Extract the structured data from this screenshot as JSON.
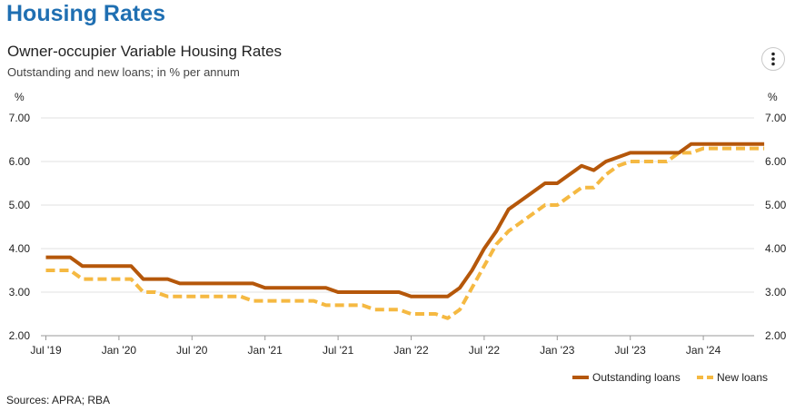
{
  "page": {
    "heading": "Housing Rates"
  },
  "chart": {
    "title": "Owner-occupier Variable Housing Rates",
    "subtitle": "Outstanding and new loans; in % per annum"
  },
  "menu": {
    "icon": "more-vertical-icon"
  },
  "source": "Sources: APRA; RBA",
  "colors": {
    "heading": "#1f6fb2",
    "outstanding": "#b5570a",
    "new": "#f5b942",
    "grid": "#e2e2e2"
  },
  "chart_data": {
    "type": "line",
    "title": "Owner-occupier Variable Housing Rates",
    "subtitle": "Outstanding and new loans; in % per annum",
    "unit_left": "%",
    "unit_right": "%",
    "ylim": [
      2.0,
      7.0
    ],
    "yticks": [
      "2.00",
      "3.00",
      "4.00",
      "5.00",
      "6.00",
      "7.00"
    ],
    "xticks": [
      "Jul '19",
      "Jan '20",
      "Jul '20",
      "Jan '21",
      "Jul '21",
      "Jan '22",
      "Jul '22",
      "Jan '23",
      "Jul '23",
      "Jan '24"
    ],
    "grid": true,
    "legend_position": "bottom-right",
    "series": [
      {
        "name": "Outstanding loans",
        "style": "solid",
        "x": [
          "2019-07",
          "2019-08",
          "2019-09",
          "2019-10",
          "2019-11",
          "2019-12",
          "2020-01",
          "2020-02",
          "2020-03",
          "2020-04",
          "2020-05",
          "2020-06",
          "2020-07",
          "2020-08",
          "2020-09",
          "2020-10",
          "2020-11",
          "2020-12",
          "2021-01",
          "2021-02",
          "2021-03",
          "2021-04",
          "2021-05",
          "2021-06",
          "2021-07",
          "2021-08",
          "2021-09",
          "2021-10",
          "2021-11",
          "2021-12",
          "2022-01",
          "2022-02",
          "2022-03",
          "2022-04",
          "2022-05",
          "2022-06",
          "2022-07",
          "2022-08",
          "2022-09",
          "2022-10",
          "2022-11",
          "2022-12",
          "2023-01",
          "2023-02",
          "2023-03",
          "2023-04",
          "2023-05",
          "2023-06",
          "2023-07",
          "2023-08",
          "2023-09",
          "2023-10",
          "2023-11",
          "2023-12",
          "2024-01",
          "2024-02",
          "2024-03",
          "2024-04",
          "2024-05",
          "2024-06"
        ],
        "values": [
          3.8,
          3.8,
          3.8,
          3.6,
          3.6,
          3.6,
          3.6,
          3.6,
          3.3,
          3.3,
          3.3,
          3.2,
          3.2,
          3.2,
          3.2,
          3.2,
          3.2,
          3.2,
          3.1,
          3.1,
          3.1,
          3.1,
          3.1,
          3.1,
          3.0,
          3.0,
          3.0,
          3.0,
          3.0,
          3.0,
          2.9,
          2.9,
          2.9,
          2.9,
          3.1,
          3.5,
          4.0,
          4.4,
          4.9,
          5.1,
          5.3,
          5.5,
          5.5,
          5.7,
          5.9,
          5.8,
          6.0,
          6.1,
          6.2,
          6.2,
          6.2,
          6.2,
          6.2,
          6.4,
          6.4,
          6.4,
          6.4,
          6.4,
          6.4,
          6.4
        ]
      },
      {
        "name": "New loans",
        "style": "dashed",
        "x": [
          "2019-07",
          "2019-08",
          "2019-09",
          "2019-10",
          "2019-11",
          "2019-12",
          "2020-01",
          "2020-02",
          "2020-03",
          "2020-04",
          "2020-05",
          "2020-06",
          "2020-07",
          "2020-08",
          "2020-09",
          "2020-10",
          "2020-11",
          "2020-12",
          "2021-01",
          "2021-02",
          "2021-03",
          "2021-04",
          "2021-05",
          "2021-06",
          "2021-07",
          "2021-08",
          "2021-09",
          "2021-10",
          "2021-11",
          "2021-12",
          "2022-01",
          "2022-02",
          "2022-03",
          "2022-04",
          "2022-05",
          "2022-06",
          "2022-07",
          "2022-08",
          "2022-09",
          "2022-10",
          "2022-11",
          "2022-12",
          "2023-01",
          "2023-02",
          "2023-03",
          "2023-04",
          "2023-05",
          "2023-06",
          "2023-07",
          "2023-08",
          "2023-09",
          "2023-10",
          "2023-11",
          "2023-12",
          "2024-01",
          "2024-02",
          "2024-03",
          "2024-04",
          "2024-05",
          "2024-06"
        ],
        "values": [
          3.5,
          3.5,
          3.5,
          3.3,
          3.3,
          3.3,
          3.3,
          3.3,
          3.0,
          3.0,
          2.9,
          2.9,
          2.9,
          2.9,
          2.9,
          2.9,
          2.9,
          2.8,
          2.8,
          2.8,
          2.8,
          2.8,
          2.8,
          2.7,
          2.7,
          2.7,
          2.7,
          2.6,
          2.6,
          2.6,
          2.5,
          2.5,
          2.5,
          2.4,
          2.6,
          3.1,
          3.6,
          4.1,
          4.4,
          4.6,
          4.8,
          5.0,
          5.0,
          5.2,
          5.4,
          5.4,
          5.7,
          5.9,
          6.0,
          6.0,
          6.0,
          6.0,
          6.2,
          6.2,
          6.3,
          6.3,
          6.3,
          6.3,
          6.3,
          6.3
        ]
      }
    ]
  }
}
